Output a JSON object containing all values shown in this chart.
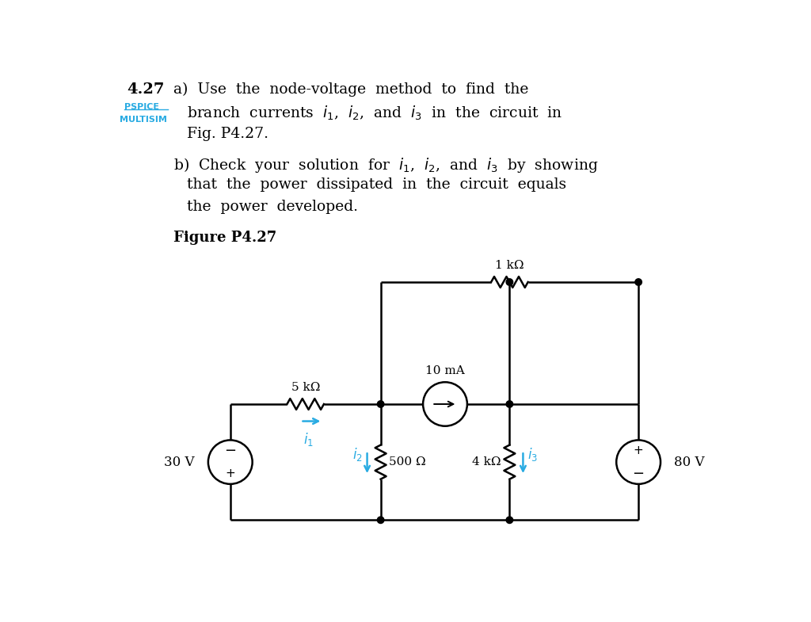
{
  "bg_color": "#ffffff",
  "text_color": "#000000",
  "blue_color": "#29ABE2",
  "fig_width": 10.24,
  "fig_height": 7.85,
  "resistor_5k_label": "5 kΩ",
  "resistor_1k_label": "1 kΩ",
  "resistor_500_label": "500 Ω",
  "resistor_4k_label": "4 kΩ",
  "current_source_label": "10 mA",
  "voltage_30v_label": "30 V",
  "voltage_80v_label": "80 V"
}
